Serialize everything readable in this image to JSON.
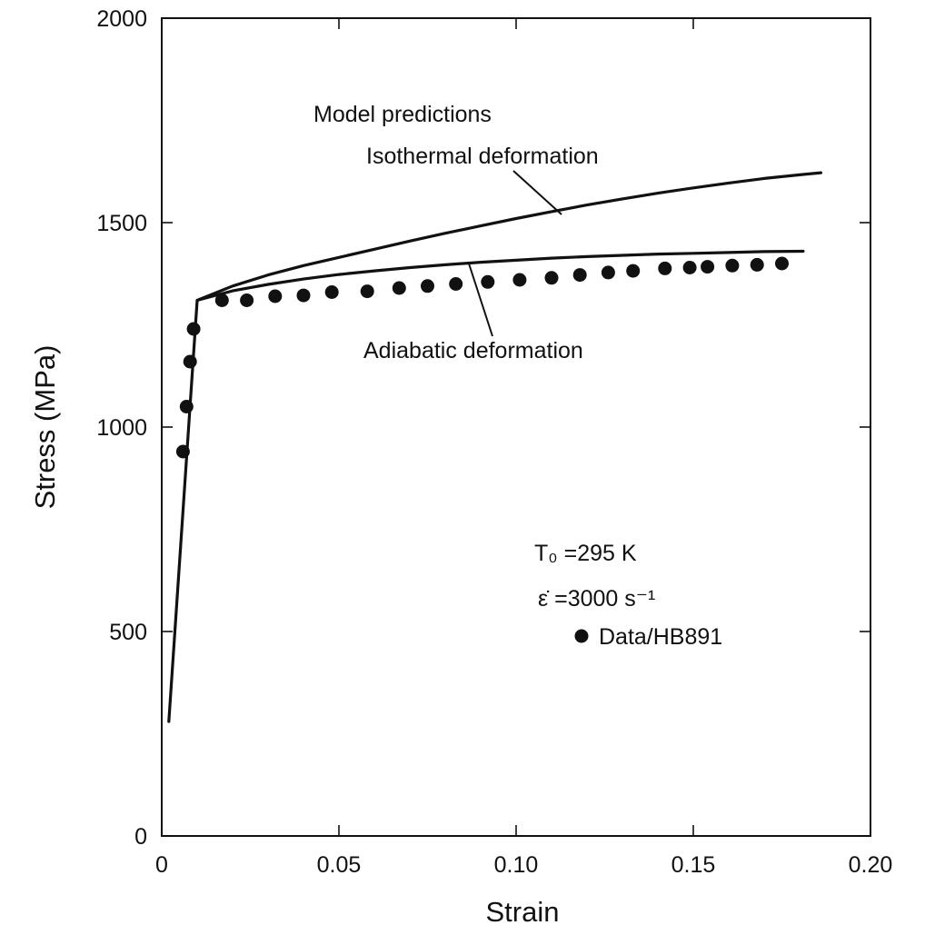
{
  "chart_data": {
    "type": "scatter",
    "xlabel": "Strain",
    "ylabel": "Stress (MPa)",
    "xlim": [
      0,
      0.2
    ],
    "ylim": [
      0,
      2000
    ],
    "x_ticks": [
      "0",
      "0.05",
      "0.10",
      "0.15",
      "0.20"
    ],
    "x_tick_values": [
      0,
      0.05,
      0.1,
      0.15,
      0.2
    ],
    "y_ticks": [
      "0",
      "500",
      "1000",
      "1500",
      "2000"
    ],
    "y_tick_values": [
      0,
      500,
      1000,
      1500,
      2000
    ],
    "grid": false,
    "annotations": {
      "model_heading": "Model predictions",
      "isothermal_label": "Isothermal deformation",
      "adiabatic_label": "Adiabatic deformation",
      "temperature": "T₀ =295 K",
      "strain_rate": "ε̇ =3000 s⁻¹",
      "data_legend": "Data/HB891"
    },
    "series": [
      {
        "kind": "line",
        "label_ref": "isothermal_label",
        "x": [
          0.002,
          0.01,
          0.02,
          0.03,
          0.04,
          0.05,
          0.06,
          0.07,
          0.08,
          0.09,
          0.1,
          0.11,
          0.12,
          0.13,
          0.14,
          0.15,
          0.16,
          0.17,
          0.18,
          0.186
        ],
        "y": [
          280,
          1310,
          1345,
          1372,
          1395,
          1415,
          1435,
          1455,
          1474,
          1492,
          1510,
          1527,
          1543,
          1558,
          1572,
          1585,
          1597,
          1608,
          1617,
          1622
        ]
      },
      {
        "kind": "line",
        "label_ref": "adiabatic_label",
        "x": [
          0.01,
          0.02,
          0.03,
          0.04,
          0.05,
          0.06,
          0.07,
          0.08,
          0.09,
          0.1,
          0.11,
          0.12,
          0.13,
          0.14,
          0.15,
          0.16,
          0.17,
          0.181
        ],
        "y": [
          1310,
          1333,
          1349,
          1362,
          1373,
          1382,
          1390,
          1397,
          1403,
          1408,
          1413,
          1417,
          1420,
          1423,
          1425,
          1427,
          1429,
          1430
        ]
      },
      {
        "kind": "scatter",
        "name": "Data/HB891",
        "x": [
          0.006,
          0.007,
          0.008,
          0.009,
          0.017,
          0.024,
          0.032,
          0.04,
          0.048,
          0.058,
          0.067,
          0.075,
          0.083,
          0.092,
          0.101,
          0.11,
          0.118,
          0.126,
          0.133,
          0.142,
          0.149,
          0.154,
          0.161,
          0.168,
          0.175
        ],
        "y": [
          940,
          1050,
          1160,
          1240,
          1310,
          1310,
          1320,
          1322,
          1330,
          1332,
          1340,
          1345,
          1350,
          1355,
          1360,
          1365,
          1372,
          1378,
          1382,
          1388,
          1390,
          1392,
          1395,
          1397,
          1400
        ]
      }
    ]
  }
}
